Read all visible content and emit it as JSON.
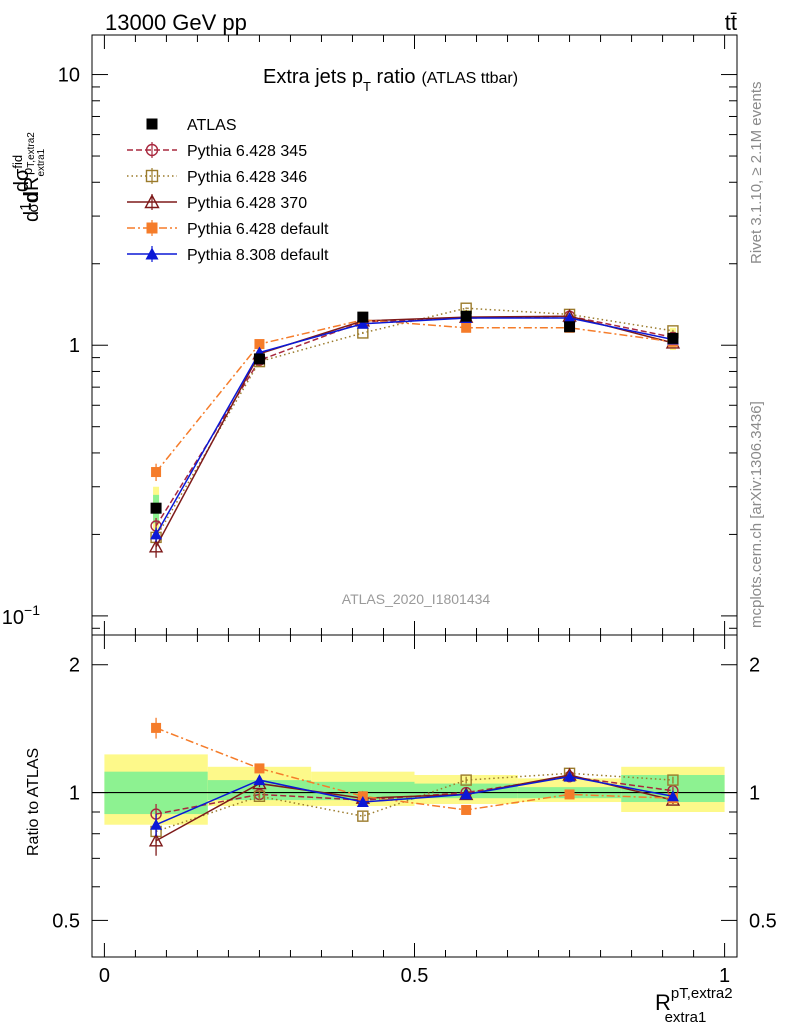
{
  "header": {
    "left": "13000 GeV pp",
    "right": "tt̄"
  },
  "chart_data": [
    {
      "type": "line",
      "panel": "main",
      "title": "Extra jets p",
      "title_sub": "T",
      "title_tail": " ratio",
      "title_note": "(ATLAS ttbar)",
      "ylabel_parts": [
        "d",
        "1",
        "σ",
        "d",
        "dσ",
        "fid",
        "p",
        "T,extra2",
        "dR",
        "extra1"
      ],
      "yscale": "log",
      "ylim": [
        0.085,
        14
      ],
      "xlim": [
        -0.02,
        1.02
      ],
      "y_ticks": [
        {
          "v": 0.1,
          "base": "10",
          "exp": "−1"
        },
        {
          "v": 1,
          "label": "1"
        },
        {
          "v": 10,
          "label": "10"
        }
      ],
      "analysis_label": "ATLAS_2020_I1801434",
      "side_label_top": "Rivet 3.1.10, ≥ 2.1M events",
      "side_label_bottom": "mcplots.cern.ch [arXiv:1306.3436]",
      "x": [
        0.0833,
        0.25,
        0.4167,
        0.5833,
        0.75,
        0.9167
      ],
      "data": {
        "name": "ATLAS",
        "color": "#000000",
        "values": [
          0.25,
          0.89,
          1.27,
          1.28,
          1.17,
          1.06
        ],
        "band_yellow": [
          [
            0.2,
            0.3
          ],
          [
            0.83,
            0.95
          ],
          [
            1.21,
            1.33
          ],
          [
            1.21,
            1.35
          ],
          [
            1.12,
            1.22
          ],
          [
            0.96,
            1.16
          ]
        ],
        "band_green": [
          [
            0.22,
            0.28
          ],
          [
            0.86,
            0.92
          ],
          [
            1.23,
            1.31
          ],
          [
            1.24,
            1.32
          ],
          [
            1.14,
            1.2
          ],
          [
            1.0,
            1.12
          ]
        ]
      },
      "series": [
        {
          "name": "Pythia 6.428 345",
          "color": "#a8283e",
          "dash": "6,3",
          "marker": "circle-open",
          "values": [
            0.215,
            0.88,
            1.22,
            1.26,
            1.28,
            1.07
          ],
          "err": [
            0.015,
            0.01,
            0.01,
            0.01,
            0.01,
            0.01
          ]
        },
        {
          "name": "Pythia 6.428 346",
          "color": "#9b7b2c",
          "dash": "1.5,3",
          "marker": "square-open",
          "values": [
            0.195,
            0.87,
            1.11,
            1.37,
            1.3,
            1.13
          ],
          "err": [
            0.015,
            0.01,
            0.01,
            0.01,
            0.01,
            0.01
          ]
        },
        {
          "name": "Pythia 6.428 370",
          "color": "#7e1a1a",
          "dash": "",
          "marker": "triangle-open",
          "values": [
            0.18,
            0.93,
            1.23,
            1.27,
            1.28,
            1.02
          ],
          "err": [
            0.016,
            0.01,
            0.01,
            0.01,
            0.01,
            0.01
          ]
        },
        {
          "name": "Pythia 6.428 default",
          "color": "#f57c2a",
          "dash": "8,3,2,3",
          "marker": "square-filled",
          "values": [
            0.34,
            1.01,
            1.24,
            1.16,
            1.16,
            1.03
          ],
          "err": [
            0.025,
            0.015,
            0.01,
            0.01,
            0.01,
            0.01
          ]
        },
        {
          "name": "Pythia 8.308 default",
          "color": "#0b18d6",
          "dash": "",
          "marker": "triangle-filled",
          "values": [
            0.2,
            0.94,
            1.2,
            1.26,
            1.26,
            1.05
          ],
          "err": [
            0.012,
            0.01,
            0.01,
            0.01,
            0.01,
            0.01
          ]
        }
      ]
    },
    {
      "type": "line",
      "panel": "ratio",
      "ylabel": "Ratio to ATLAS",
      "yscale": "log",
      "ylim": [
        0.41,
        2.35
      ],
      "y_ticks": [
        {
          "v": 0.5,
          "label": "0.5"
        },
        {
          "v": 1,
          "label": "1"
        },
        {
          "v": 2,
          "label": "2"
        }
      ],
      "x_ticks": [
        {
          "v": 0,
          "label": "0"
        },
        {
          "v": 0.5,
          "label": "0.5"
        },
        {
          "v": 1,
          "label": "1"
        }
      ],
      "xlabel_main": "R",
      "xlabel_sup": "pT,extra2",
      "xlabel_sub": "extra1",
      "bins": [
        [
          0,
          0.1667
        ],
        [
          0.1667,
          0.3333
        ],
        [
          0.3333,
          0.5
        ],
        [
          0.5,
          0.6667
        ],
        [
          0.6667,
          0.8333
        ],
        [
          0.8333,
          1.0
        ]
      ],
      "band_yellow": [
        [
          0.84,
          1.23
        ],
        [
          0.93,
          1.15
        ],
        [
          0.93,
          1.12
        ],
        [
          0.94,
          1.1
        ],
        [
          0.95,
          1.08
        ],
        [
          0.9,
          1.15
        ]
      ],
      "band_green": [
        [
          0.89,
          1.12
        ],
        [
          0.96,
          1.07
        ],
        [
          0.96,
          1.06
        ],
        [
          0.97,
          1.05
        ],
        [
          0.97,
          1.03
        ],
        [
          0.95,
          1.1
        ]
      ],
      "x": [
        0.0833,
        0.25,
        0.4167,
        0.5833,
        0.75,
        0.9167
      ],
      "series": [
        {
          "name": "Pythia 6.428 345",
          "values": [
            0.89,
            0.99,
            0.96,
            1.0,
            1.09,
            1.01
          ],
          "err": [
            0.05,
            0.02,
            0.02,
            0.02,
            0.02,
            0.02
          ]
        },
        {
          "name": "Pythia 6.428 346",
          "values": [
            0.81,
            0.98,
            0.88,
            1.07,
            1.11,
            1.07
          ],
          "err": [
            0.05,
            0.02,
            0.02,
            0.02,
            0.02,
            0.02
          ]
        },
        {
          "name": "Pythia 6.428 370",
          "values": [
            0.77,
            1.05,
            0.97,
            0.99,
            1.1,
            0.96
          ],
          "err": [
            0.06,
            0.02,
            0.02,
            0.02,
            0.02,
            0.02
          ]
        },
        {
          "name": "Pythia 6.428 default",
          "values": [
            1.42,
            1.14,
            0.98,
            0.91,
            0.99,
            0.97
          ],
          "err": [
            0.08,
            0.03,
            0.02,
            0.02,
            0.02,
            0.02
          ]
        },
        {
          "name": "Pythia 8.308 default",
          "values": [
            0.84,
            1.07,
            0.95,
            0.99,
            1.09,
            0.98
          ],
          "err": [
            0.05,
            0.02,
            0.02,
            0.02,
            0.02,
            0.02
          ]
        }
      ]
    }
  ]
}
